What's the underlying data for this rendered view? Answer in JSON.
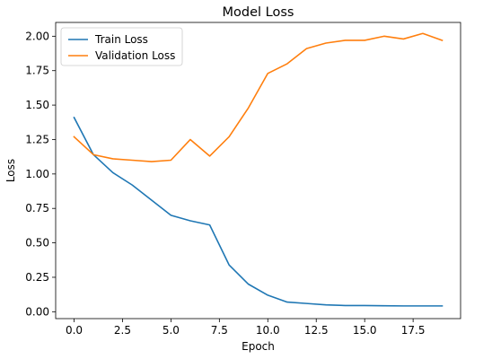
{
  "chart_data": {
    "type": "line",
    "title": "Model Loss",
    "xlabel": "Epoch",
    "ylabel": "Loss",
    "xlim": [
      -0.95,
      19.95
    ],
    "ylim": [
      -0.05,
      2.1
    ],
    "xticks": [
      0.0,
      2.5,
      5.0,
      7.5,
      10.0,
      12.5,
      15.0,
      17.5
    ],
    "xtick_labels": [
      "0.0",
      "2.5",
      "5.0",
      "7.5",
      "10.0",
      "12.5",
      "15.0",
      "17.5"
    ],
    "yticks": [
      0.0,
      0.25,
      0.5,
      0.75,
      1.0,
      1.25,
      1.5,
      1.75,
      2.0
    ],
    "ytick_labels": [
      "0.00",
      "0.25",
      "0.50",
      "0.75",
      "1.00",
      "1.25",
      "1.50",
      "1.75",
      "2.00"
    ],
    "grid": false,
    "legend_position": "upper-left",
    "x": [
      0,
      1,
      2,
      3,
      4,
      5,
      6,
      7,
      8,
      9,
      10,
      11,
      12,
      13,
      14,
      15,
      16,
      17,
      18,
      19
    ],
    "series": [
      {
        "name": "Train Loss",
        "color": "#1f77b4",
        "values": [
          1.41,
          1.14,
          1.01,
          0.92,
          0.81,
          0.7,
          0.66,
          0.63,
          0.34,
          0.2,
          0.12,
          0.07,
          0.06,
          0.05,
          0.045,
          0.045,
          0.043,
          0.042,
          0.042,
          0.042
        ]
      },
      {
        "name": "Validation Loss",
        "color": "#ff7f0e",
        "values": [
          1.27,
          1.14,
          1.11,
          1.1,
          1.09,
          1.1,
          1.25,
          1.13,
          1.27,
          1.48,
          1.73,
          1.8,
          1.91,
          1.95,
          1.97,
          1.97,
          2.0,
          1.98,
          2.02,
          1.97
        ]
      }
    ]
  }
}
